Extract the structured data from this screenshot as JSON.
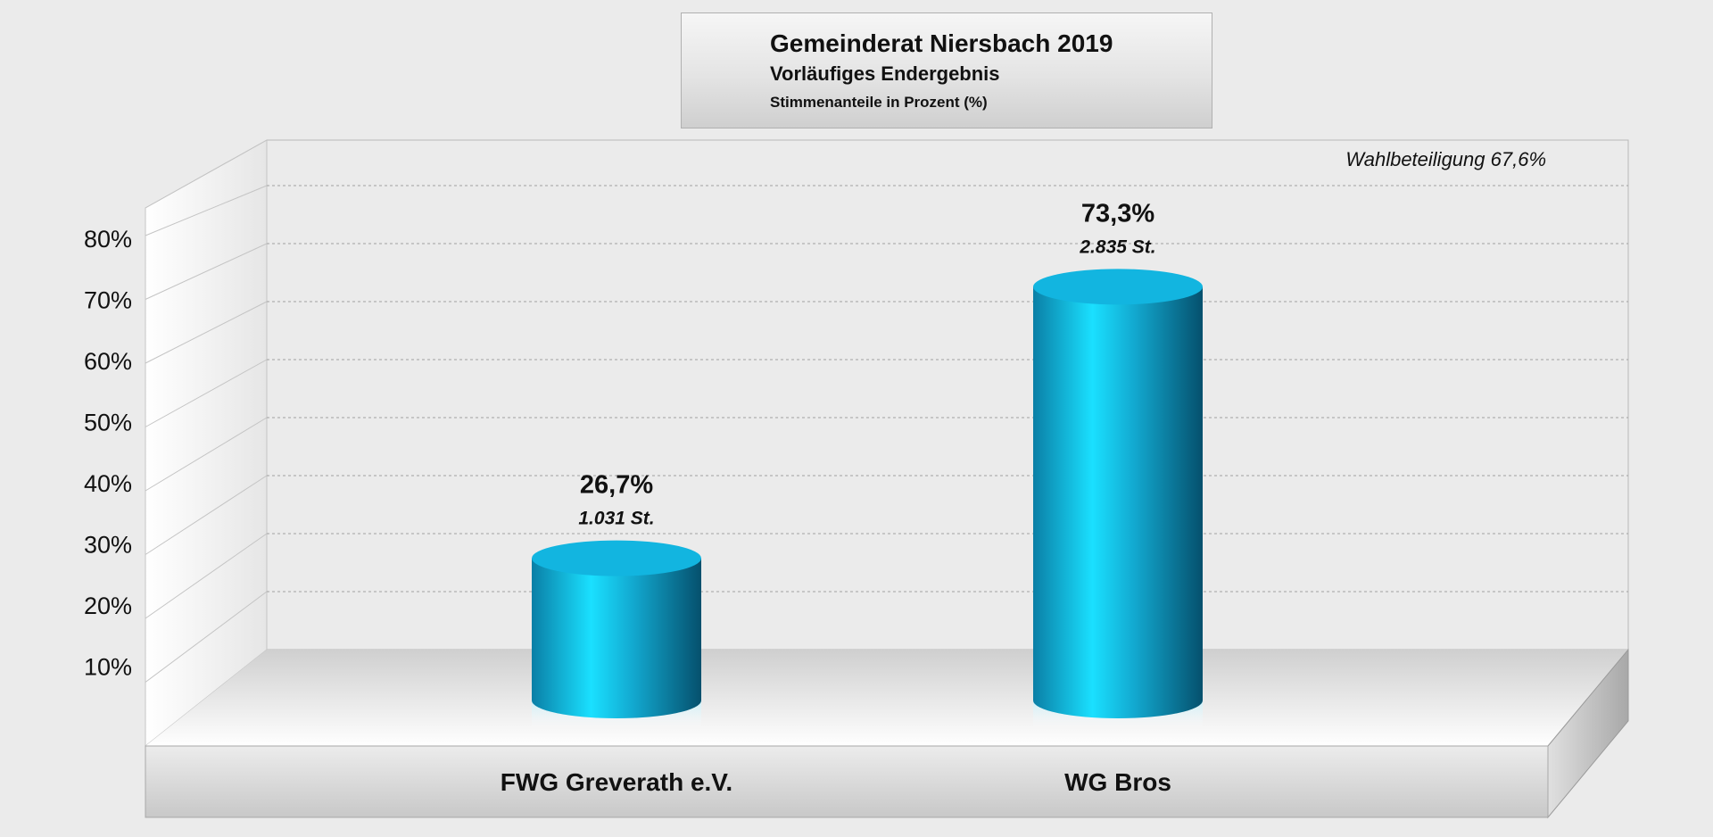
{
  "chart_data": {
    "type": "bar",
    "title": "Gemeinderat Niersbach 2019",
    "subtitle": "Vorläufiges Endergebnis",
    "ylabel": "Stimmenanteile in Prozent (%)",
    "annotation": "Wahlbeteiligung 67,6%",
    "categories": [
      "FWG Greverath e.V.",
      "WG Bros"
    ],
    "values": [
      26.7,
      73.3
    ],
    "value_labels": [
      "26,7%",
      "73,3%"
    ],
    "votes_labels": [
      "1.031 St.",
      "2.835 St."
    ],
    "yticks": [
      10,
      20,
      30,
      40,
      50,
      60,
      70,
      80
    ],
    "ytick_labels": [
      "10%",
      "20%",
      "30%",
      "40%",
      "50%",
      "60%",
      "70%",
      "80%"
    ],
    "ylim": [
      0,
      90
    ],
    "grid": true,
    "bar_color": "#12b5e0"
  }
}
